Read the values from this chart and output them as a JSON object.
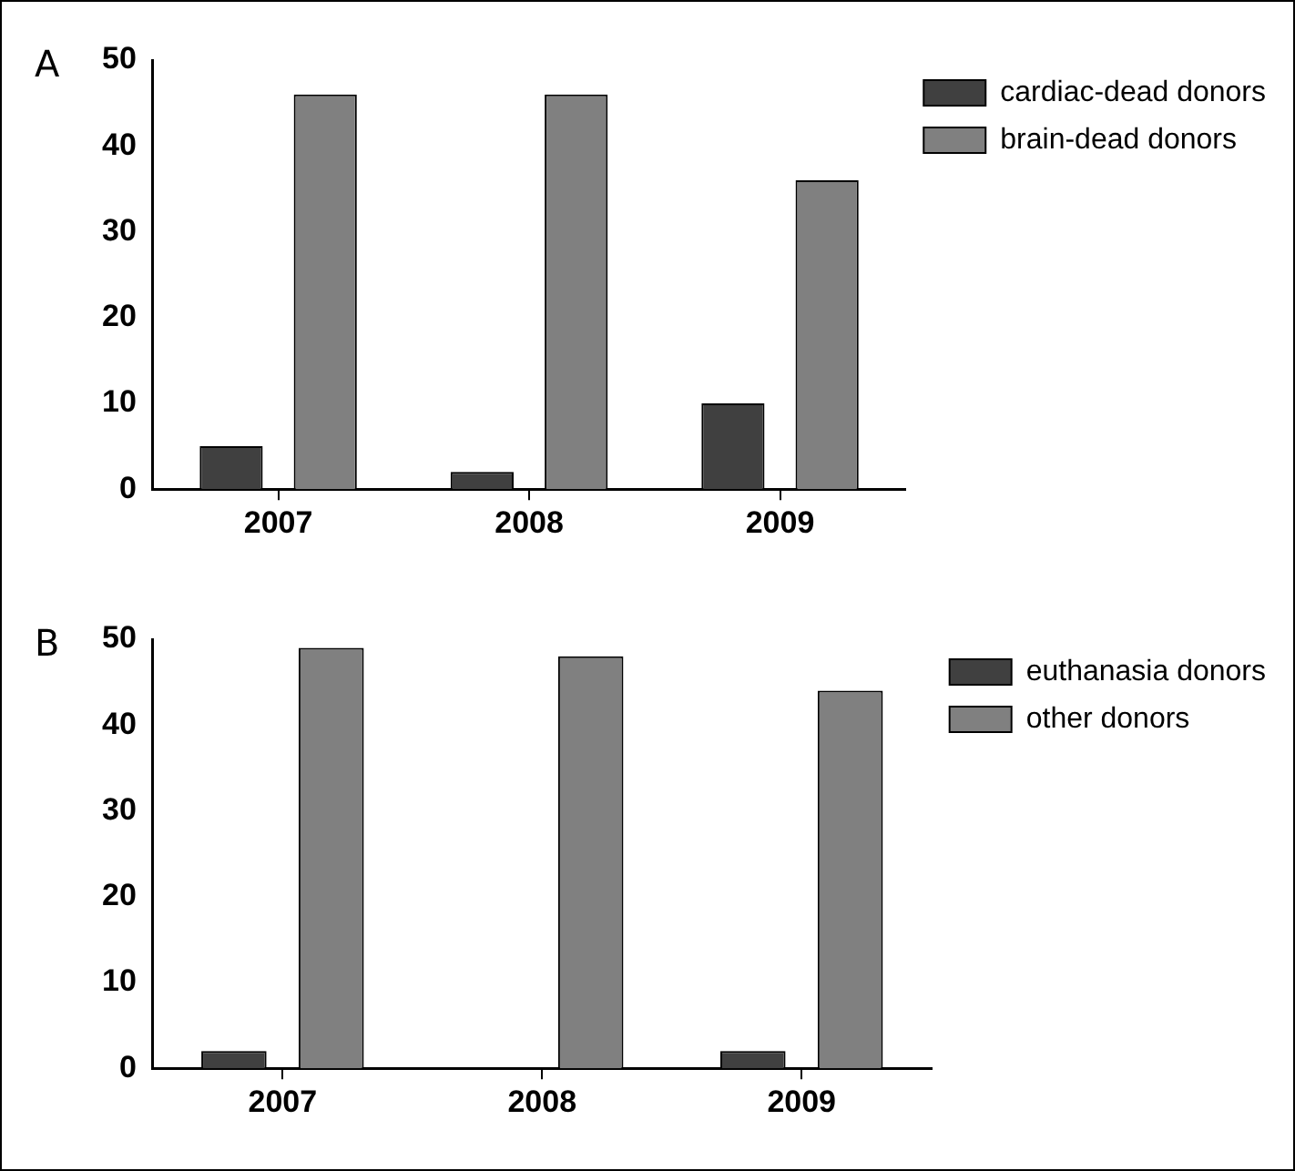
{
  "chart_data": [
    {
      "type": "bar",
      "title": "A",
      "categories": [
        "2007",
        "2008",
        "2009"
      ],
      "series": [
        {
          "name": "cardiac-dead donors",
          "color": "#404040",
          "values": [
            5,
            2,
            10
          ]
        },
        {
          "name": "brain-dead donors",
          "color": "#808080",
          "values": [
            46,
            46,
            36
          ]
        }
      ],
      "ylim": [
        0,
        50
      ],
      "yticks": [
        0,
        10,
        20,
        30,
        40,
        50
      ],
      "grid": false,
      "legend": "top right"
    },
    {
      "type": "bar",
      "title": "B",
      "categories": [
        "2007",
        "2008",
        "2009"
      ],
      "series": [
        {
          "name": "euthanasia donors",
          "color": "#404040",
          "values": [
            2,
            0,
            2
          ]
        },
        {
          "name": "other donors",
          "color": "#808080",
          "values": [
            49,
            48,
            44
          ]
        }
      ],
      "ylim": [
        0,
        50
      ],
      "yticks": [
        0,
        10,
        20,
        30,
        40,
        50
      ],
      "grid": false,
      "legend": "top right"
    }
  ]
}
